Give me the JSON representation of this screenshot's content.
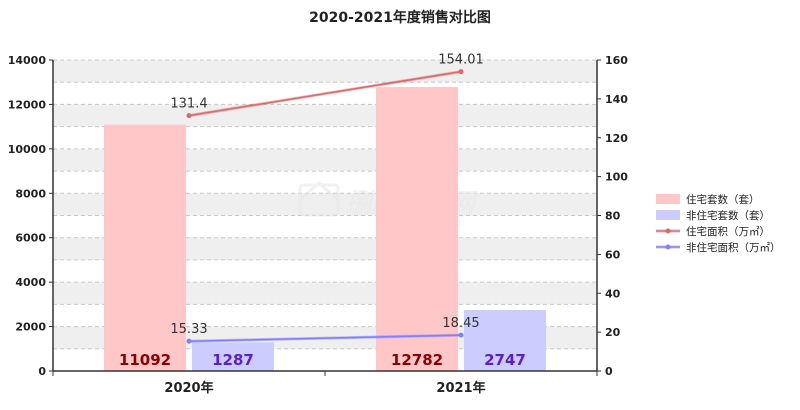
{
  "chart_data": {
    "type": "bar",
    "title": "2020-2021年度销售对比图",
    "categories": [
      "2020年",
      "2021年"
    ],
    "series": [
      {
        "name": "住宅套数（套）",
        "kind": "bar",
        "axis": "left",
        "values": [
          11092,
          12782
        ],
        "color": "#ffc7c7",
        "label_color": "#8b0000"
      },
      {
        "name": "非住宅套数（套）",
        "kind": "bar",
        "axis": "left",
        "values": [
          1287,
          2747
        ],
        "color": "#ccccff",
        "label_color": "#5a1fc8"
      },
      {
        "name": "住宅面积（万㎡）",
        "kind": "line",
        "axis": "right",
        "values": [
          131.4,
          154.01
        ],
        "color": "#d9696b"
      },
      {
        "name": "非住宅面积（万㎡）",
        "kind": "line",
        "axis": "right",
        "values": [
          15.33,
          18.45
        ],
        "color": "#7f7fff"
      }
    ],
    "left_axis": {
      "min": 0,
      "max": 14000,
      "ticks": [
        0,
        2000,
        4000,
        6000,
        8000,
        10000,
        12000,
        14000
      ]
    },
    "right_axis": {
      "min": 0,
      "max": 160,
      "ticks": [
        0,
        20,
        40,
        60,
        80,
        100,
        120,
        140,
        160
      ]
    },
    "line_labels": [
      "131.4",
      "154.01",
      "15.33",
      "18.45"
    ],
    "bar_labels": [
      "11092",
      "1287",
      "12782",
      "2747"
    ],
    "grid": true,
    "legend_position": "right"
  },
  "watermark": "捌门房产网 jmfc.com.cn"
}
